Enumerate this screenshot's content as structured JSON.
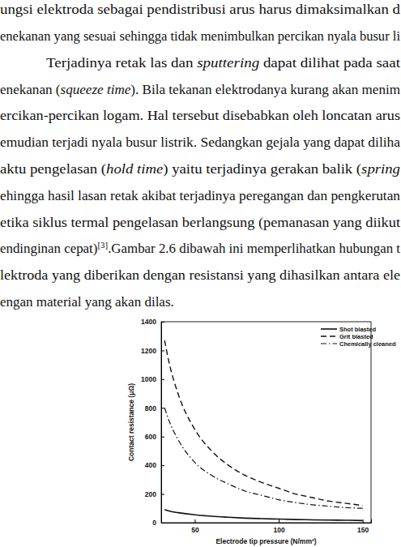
{
  "paragraphs": [
    {
      "lines": [
        [
          {
            "text": "ungsi elektroda sebagai pendistribusi arus harus dimaksimalkan d"
          }
        ],
        [
          {
            "text": "enekanan yang sesuai sehingga tidak menimbulkan percikan nyala busur li"
          }
        ]
      ]
    },
    {
      "lines": [
        [
          {
            "text": "Terjadinya retak las dan "
          },
          {
            "text": "sputtering",
            "style": "italic"
          },
          {
            "text": " dapat dilihat pada saat"
          }
        ],
        [
          {
            "text": "enekanan ("
          },
          {
            "text": "squeeze time",
            "style": "italic"
          },
          {
            "text": "). Bila tekanan elektrodanya kurang akan menim"
          }
        ],
        [
          {
            "text": "ercikan-percikan logam. Hal tersebut disebabkan oleh loncatan arus"
          }
        ],
        [
          {
            "text": "emudian terjadi nyala busur listrik. Sedangkan gejala yang dapat diliha"
          }
        ],
        [
          {
            "text": "aktu pengelasan ("
          },
          {
            "text": "hold time",
            "style": "italic"
          },
          {
            "text": ") yaitu terjadinya gerakan balik ("
          },
          {
            "text": "spring",
            "style": "italic"
          }
        ],
        [
          {
            "text": "ehingga hasil lasan retak akibat terjadinya peregangan dan pengkerutan"
          }
        ],
        [
          {
            "text": "etika siklus termal pengelasan berlangsung (pemanasan yang diikut"
          }
        ],
        [
          {
            "text": "endinginan cepat)"
          },
          {
            "text": "[3]",
            "style": "sup"
          },
          {
            "text": ".Gambar 2.6 dibawah ini memperlihatkan hubungan t"
          }
        ],
        [
          {
            "text": "lektroda yang diberikan dengan resistansi yang dihasilkan antara ele"
          }
        ],
        [
          {
            "text": "engan material yang akan dilas."
          }
        ]
      ]
    }
  ],
  "chart_data": {
    "type": "line",
    "x_label": "Electrode tip pressure (N/mm²)",
    "y_label": "Contact resistance (μΩ)",
    "x": [
      32,
      35,
      40,
      50,
      60,
      70,
      80,
      90,
      100,
      110,
      120,
      130,
      140,
      150
    ],
    "series": [
      {
        "name": "Shot blasted",
        "color": "#111111",
        "line_style": "solid",
        "values": [
          90,
          80,
          70,
          55,
          45,
          38,
          32,
          28,
          25,
          22,
          20,
          18,
          17,
          15
        ]
      },
      {
        "name": "Grit blasted",
        "color": "#111111",
        "line_style": "dashed",
        "values": [
          1270,
          1100,
          900,
          650,
          500,
          400,
          330,
          280,
          240,
          200,
          175,
          150,
          135,
          120
        ]
      },
      {
        "name": "Chemically cleaned",
        "color": "#111111",
        "line_style": "dashdot",
        "values": [
          800,
          700,
          580,
          420,
          330,
          270,
          220,
          190,
          160,
          140,
          125,
          115,
          105,
          100
        ]
      }
    ],
    "xlim": [
      30,
      155
    ],
    "xticks": [
      50,
      100,
      150
    ],
    "ylim": [
      0,
      1400
    ],
    "yticks": [
      0,
      200,
      400,
      600,
      800,
      1000,
      1200,
      1400
    ],
    "grid": false,
    "legend": "upper right"
  }
}
